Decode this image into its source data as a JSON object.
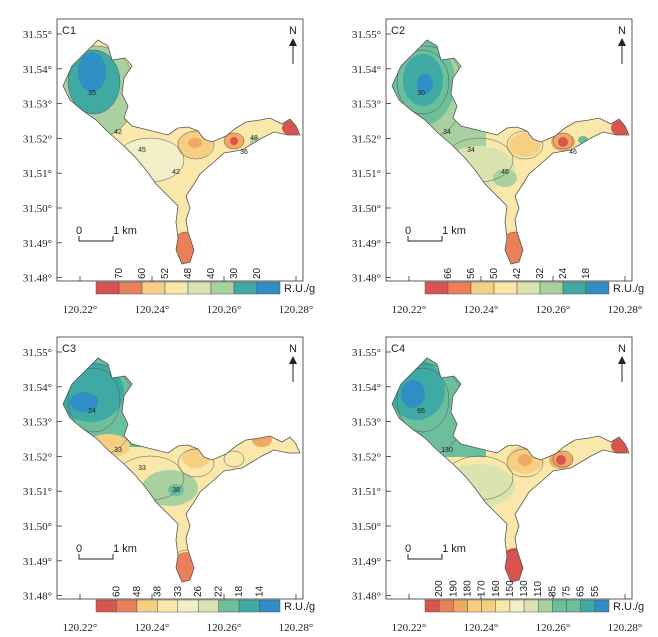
{
  "panels": [
    {
      "id": "C1",
      "unit": "R.U./g",
      "legend_values": [
        "70",
        "60",
        "52",
        "48",
        "40",
        "30",
        "20"
      ],
      "contour_labels": [
        "35",
        "42",
        "45",
        "42",
        "36",
        "48"
      ],
      "palette": [
        "#d9534f",
        "#e9805a",
        "#f0a865",
        "#f6cf82",
        "#f9e8aa",
        "#f3efc8",
        "#dbe4b0",
        "#a9d1a0",
        "#6cbf9b",
        "#3fa9a3",
        "#2f8fc4"
      ]
    },
    {
      "id": "C2",
      "unit": "R.U./g",
      "legend_values": [
        "66",
        "56",
        "50",
        "42",
        "32",
        "24",
        "18"
      ],
      "contour_labels": [
        "30",
        "34",
        "34",
        "46",
        "46"
      ],
      "palette": [
        "#d9534f",
        "#e9805a",
        "#f0a865",
        "#f6cf82",
        "#f9e8aa",
        "#f3efc8",
        "#dbe4b0",
        "#a9d1a0",
        "#6cbf9b",
        "#3fa9a3",
        "#2f8fc4"
      ]
    },
    {
      "id": "C3",
      "unit": "R.U./g",
      "legend_values": [
        "60",
        "48",
        "38",
        "33",
        "26",
        "22",
        "18",
        "14"
      ],
      "contour_labels": [
        "24",
        "33",
        "33",
        "38"
      ],
      "palette": [
        "#d9534f",
        "#e9805a",
        "#f0a865",
        "#f6cf82",
        "#f9e8aa",
        "#f3efc8",
        "#dbe4b0",
        "#a9d1a0",
        "#6cbf9b",
        "#3fa9a3",
        "#2f8fc4"
      ]
    },
    {
      "id": "C4",
      "unit": "R.U./g",
      "legend_values": [
        "200",
        "190",
        "180",
        "170",
        "160",
        "150",
        "130",
        "110",
        "85",
        "75",
        "65",
        "55"
      ],
      "contour_labels": [
        "65",
        "130"
      ],
      "palette": [
        "#d9534f",
        "#e9805a",
        "#f0a865",
        "#f6cf82",
        "#f9e8aa",
        "#f3efc8",
        "#dbe4b0",
        "#a9d1a0",
        "#6cbf9b",
        "#3fa9a3",
        "#2f8fc4"
      ]
    }
  ],
  "axes": {
    "y_ticks": [
      "31.55°",
      "31.54°",
      "31.53°",
      "31.52°",
      "31.51°",
      "31.50°",
      "31.49°",
      "31.48°"
    ],
    "x_ticks": [
      "120.22°",
      "120.24°",
      "120.26°",
      "120.28°"
    ]
  },
  "north_label": "N",
  "scale_bar": {
    "zero": "0",
    "length": "1 km"
  }
}
